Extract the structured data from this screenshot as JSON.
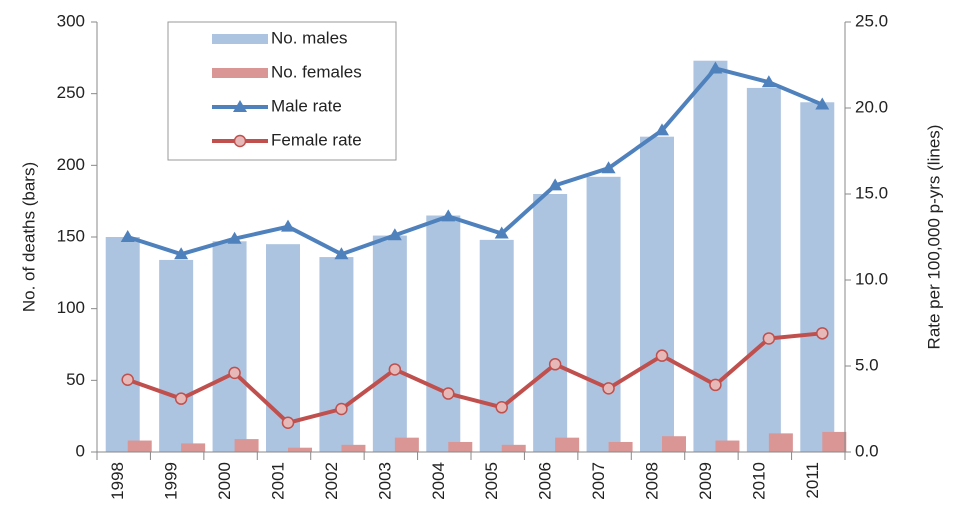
{
  "chart_data": {
    "type": "bar_line_combo",
    "categories": [
      "1998",
      "1999",
      "2000",
      "2001",
      "2002",
      "2003",
      "2004",
      "2005",
      "2006",
      "2007",
      "2008",
      "2009",
      "2010",
      "2011"
    ],
    "series": [
      {
        "name": "No. males",
        "type": "bar",
        "color": "#adc4e0",
        "values": [
          150,
          134,
          147,
          145,
          136,
          151,
          165,
          148,
          180,
          192,
          220,
          273,
          254,
          244
        ]
      },
      {
        "name": "No. females",
        "type": "bar",
        "color": "#d99694",
        "values": [
          8,
          6,
          9,
          3,
          5,
          10,
          7,
          5,
          10,
          7,
          11,
          8,
          13,
          14
        ]
      },
      {
        "name": "Male rate",
        "type": "line",
        "axis": "y2",
        "color": "#4f81bd",
        "marker": "triangle",
        "values": [
          12.5,
          11.5,
          12.4,
          13.1,
          11.5,
          12.6,
          13.7,
          12.7,
          15.5,
          16.5,
          18.7,
          22.3,
          21.5,
          20.2
        ]
      },
      {
        "name": "Female rate",
        "type": "line",
        "axis": "y2",
        "color": "#c0504d",
        "marker": "circle",
        "values": [
          4.2,
          3.1,
          4.6,
          1.7,
          2.5,
          4.8,
          3.4,
          2.6,
          5.1,
          3.7,
          5.6,
          3.9,
          6.6,
          6.9
        ]
      }
    ],
    "ylabel": "No. of deaths (bars)",
    "y2label": "Rate per 100,000 p-yrs (lines)",
    "ylim": [
      0,
      300
    ],
    "yticks": [
      0,
      50,
      100,
      150,
      200,
      250,
      300
    ],
    "y2lim": [
      0,
      25
    ],
    "y2ticks": [
      {
        "value": 0,
        "label": "0.0"
      },
      {
        "value": 5,
        "label": "5.0"
      },
      {
        "value": 10,
        "label": "10.0"
      },
      {
        "value": 15,
        "label": "15.0"
      },
      {
        "value": 20,
        "label": "20.0"
      },
      {
        "value": 25,
        "label": "25.0"
      }
    ],
    "grid": false,
    "legend": "upper-left"
  }
}
